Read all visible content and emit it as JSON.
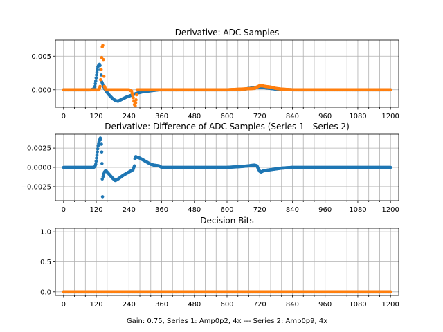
{
  "figure": {
    "xlabel": "Gain: 0.75, Series 1: Amp0p2, 4x --- Series 2: Amp0p9, 4x",
    "colors": {
      "series1": "#1f77b4",
      "series2": "#ff7f0e"
    }
  },
  "chart_data": [
    {
      "type": "scatter",
      "title": "Derivative: ADC Samples",
      "xlim": [
        -30,
        1230
      ],
      "ylim": [
        -0.0026,
        0.0074
      ],
      "xticks": [
        0,
        120,
        240,
        360,
        480,
        600,
        720,
        840,
        960,
        1080,
        1200
      ],
      "xtick_labels": [
        "0",
        "120",
        "240",
        "360",
        "480",
        "600",
        "720",
        "840",
        "960",
        "1080",
        "1200"
      ],
      "yticks": [
        0.0,
        0.005
      ],
      "ytick_labels": [
        "0.000",
        "0.005"
      ],
      "grid": true,
      "series": [
        {
          "name": "Series 1",
          "color": "#1f77b4",
          "x": [
            0,
            100,
            110,
            115,
            118,
            121,
            124,
            126,
            128,
            130,
            132,
            134,
            136,
            138,
            140,
            150,
            160,
            170,
            180,
            190,
            200,
            215,
            230,
            250,
            270,
            290,
            310,
            330,
            350,
            380,
            420,
            500,
            600,
            650,
            680,
            700,
            710,
            720,
            740,
            760,
            780,
            800,
            840,
            900,
            1000,
            1100,
            1200
          ],
          "y": [
            0,
            0,
            0.0001,
            0.0005,
            0.0013,
            0.0022,
            0.003,
            0.0034,
            0.0036,
            0.0037,
            0.0038,
            0.0036,
            0.003,
            0.0022,
            0.0012,
            0.0002,
            -0.0004,
            -0.0009,
            -0.0013,
            -0.0016,
            -0.0017,
            -0.0014,
            -0.0011,
            -0.0008,
            -0.0005,
            -0.0003,
            -0.0002,
            -0.0001,
            0,
            0,
            0,
            0,
            0,
            0,
            0.0002,
            0.0003,
            0.0004,
            0.0004,
            0.0003,
            0.0002,
            0.0001,
            5e-05,
            0,
            0,
            0,
            0,
            0
          ]
        },
        {
          "name": "Series 2",
          "color": "#ff7f0e",
          "x": [
            0,
            100,
            130,
            134,
            136,
            138,
            140,
            142,
            144,
            146,
            148,
            150,
            155,
            160,
            240,
            250,
            256,
            260,
            263,
            266,
            270,
            300,
            400,
            500,
            600,
            700,
            710,
            715,
            720,
            730,
            740,
            760,
            780,
            800,
            840,
            900,
            1000,
            1100,
            1200
          ],
          "y": [
            0,
            0,
            0,
            0.0005,
            0.0015,
            0.003,
            0.0048,
            0.0064,
            0.0066,
            0.0045,
            0.002,
            0.0005,
            0,
            0,
            0,
            -0.0002,
            -0.0012,
            -0.0022,
            -0.0024,
            -0.0015,
            0,
            0,
            0,
            0,
            0,
            0.0002,
            0.0004,
            0.0005,
            0.0006,
            0.0006,
            0.0005,
            0.0004,
            0.0002,
            0.0001,
            0,
            0,
            0,
            0,
            0
          ]
        }
      ]
    },
    {
      "type": "scatter",
      "title": "Derivative: Difference of ADC Samples (Series 1 - Series 2)",
      "xlim": [
        -30,
        1230
      ],
      "ylim": [
        -0.0043,
        0.0043
      ],
      "xticks": [
        0,
        120,
        240,
        360,
        480,
        600,
        720,
        840,
        960,
        1080,
        1200
      ],
      "xtick_labels": [
        "0",
        "120",
        "240",
        "360",
        "480",
        "600",
        "720",
        "840",
        "960",
        "1080",
        "1200"
      ],
      "yticks": [
        -0.0025,
        0.0,
        0.0025
      ],
      "ytick_labels": [
        "−0.0025",
        "0.0000",
        "0.0025"
      ],
      "grid": true,
      "series": [
        {
          "name": "Difference",
          "color": "#1f77b4",
          "x": [
            0,
            100,
            110,
            115,
            118,
            121,
            124,
            127,
            130,
            133,
            135,
            137,
            139,
            140,
            141,
            142,
            143,
            145,
            150,
            155,
            160,
            170,
            180,
            190,
            200,
            220,
            240,
            255,
            260,
            262,
            265,
            270,
            280,
            290,
            300,
            310,
            320,
            330,
            350,
            360,
            380,
            420,
            500,
            600,
            650,
            680,
            700,
            710,
            715,
            720,
            725,
            730,
            740,
            760,
            780,
            800,
            840,
            900,
            1000,
            1100,
            1200
          ],
          "y": [
            0,
            0,
            0,
            0.0001,
            0.0004,
            0.0012,
            0.002,
            0.0028,
            0.0033,
            0.0036,
            0.0038,
            0.0036,
            0.003,
            0.002,
            0.0005,
            -0.0015,
            -0.0038,
            -0.0012,
            -0.0006,
            -0.0004,
            -0.0006,
            -0.001,
            -0.0014,
            -0.0017,
            -0.0015,
            -0.001,
            -0.0006,
            -0.0003,
            0.0002,
            0.0011,
            0.0014,
            0.0013,
            0.0012,
            0.001,
            0.0008,
            0.0006,
            0.0004,
            0.0003,
            0.0002,
            0,
            0,
            0,
            0,
            0,
            0.0001,
            0.0002,
            0.0003,
            0.0002,
            -0.0002,
            -0.0005,
            -0.0006,
            -0.0005,
            -0.0004,
            -0.0003,
            -0.0002,
            -0.0001,
            0,
            0,
            0,
            0,
            0
          ]
        }
      ]
    },
    {
      "type": "scatter",
      "title": "Decision Bits",
      "xlim": [
        -30,
        1230
      ],
      "ylim": [
        -0.06,
        1.06
      ],
      "xticks": [
        0,
        120,
        240,
        360,
        480,
        600,
        720,
        840,
        960,
        1080,
        1200
      ],
      "xtick_labels": [
        "0",
        "120",
        "240",
        "360",
        "480",
        "600",
        "720",
        "840",
        "960",
        "1080",
        "1200"
      ],
      "yticks": [
        0.0,
        0.5,
        1.0
      ],
      "ytick_labels": [
        "0.0",
        "0.5",
        "1.0"
      ],
      "grid": true,
      "series": [
        {
          "name": "Series 1",
          "color": "#1f77b4",
          "x": [
            0,
            1200
          ],
          "y": [
            0,
            0
          ]
        },
        {
          "name": "Series 2",
          "color": "#ff7f0e",
          "x": [
            0,
            1200
          ],
          "y": [
            0,
            0
          ]
        }
      ]
    }
  ]
}
